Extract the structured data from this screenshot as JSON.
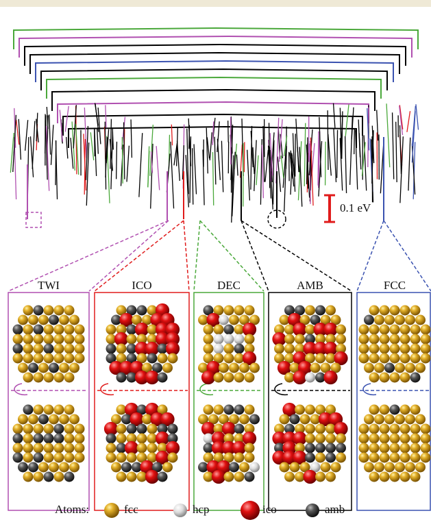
{
  "scale_bar": "0.1 eV",
  "panels": [
    {
      "label": "TWI"
    },
    {
      "label": "ICO"
    },
    {
      "label": "DEC"
    },
    {
      "label": "AMB"
    },
    {
      "label": "FCC"
    }
  ],
  "legend": {
    "title": "Atoms:",
    "items": [
      {
        "label": "fcc"
      },
      {
        "label": "hcp"
      },
      {
        "label": "ico"
      },
      {
        "label": "amb"
      }
    ]
  }
}
